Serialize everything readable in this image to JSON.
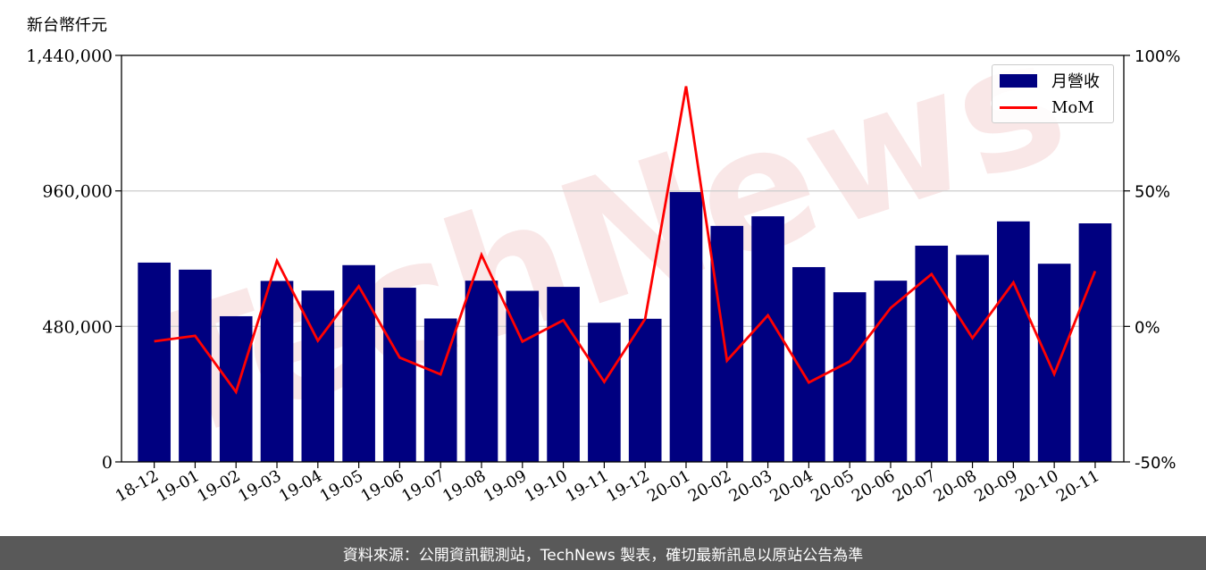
{
  "unit_label": "新台幣仟元",
  "footer_text": "資料來源：公開資訊觀測站，TechNews 製表，確切最新訊息以原站公告為準",
  "watermark_text": "TechNews",
  "chart_data": {
    "type": "bar",
    "categories": [
      "18-12",
      "19-01",
      "19-02",
      "19-03",
      "19-04",
      "19-05",
      "19-06",
      "19-07",
      "19-08",
      "19-09",
      "19-10",
      "19-11",
      "19-12",
      "20-01",
      "20-02",
      "20-03",
      "20-04",
      "20-05",
      "20-06",
      "20-07",
      "20-08",
      "20-09",
      "20-10",
      "20-11"
    ],
    "series": [
      {
        "name": "月營收",
        "axis": "left",
        "type": "bar",
        "color": "#000080",
        "values": [
          706000,
          681000,
          516000,
          641000,
          607000,
          697000,
          617000,
          508000,
          642000,
          606000,
          620000,
          493000,
          507000,
          956000,
          836000,
          870000,
          690000,
          601000,
          642000,
          766000,
          733000,
          852000,
          702000,
          845000
        ]
      },
      {
        "name": "MoM",
        "axis": "right",
        "type": "line",
        "color": "#ff0000",
        "values": [
          -5.5,
          -3.5,
          -24.2,
          24.2,
          -5.3,
          14.8,
          -11.5,
          -17.7,
          26.4,
          -5.6,
          2.3,
          -20.5,
          2.8,
          88.6,
          -12.6,
          4.1,
          -20.7,
          -12.9,
          6.8,
          19.3,
          -4.3,
          16.2,
          -17.6,
          20.4
        ]
      }
    ],
    "y_left": {
      "lim": [
        0,
        1440000
      ],
      "ticks": [
        "0",
        "480,000",
        "960,000",
        "1,440,000"
      ],
      "tick_values": [
        0,
        480000,
        960000,
        1440000
      ]
    },
    "y_right": {
      "lim": [
        -50,
        100
      ],
      "ticks": [
        "-50%",
        "0%",
        "50%",
        "100%"
      ],
      "tick_values": [
        -50,
        0,
        50,
        100
      ]
    },
    "grid": true,
    "legend_position": "top-right"
  }
}
